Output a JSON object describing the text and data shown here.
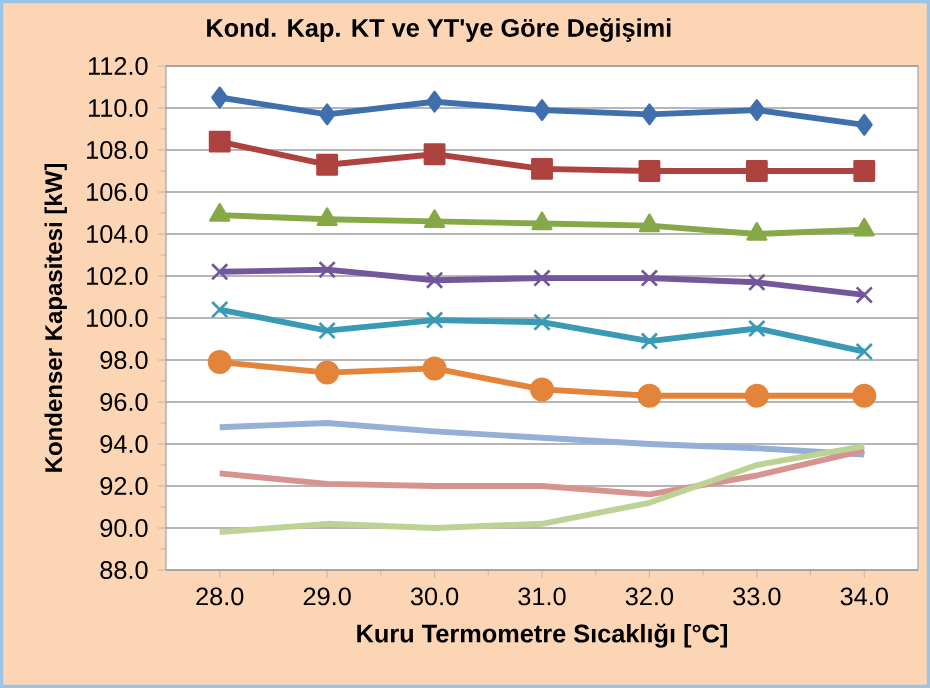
{
  "chart_data": {
    "type": "line",
    "title": "Kond. Kap. KT ve YT'ye Göre Değişimi",
    "xlabel": "Kuru Termometre Sıcaklığı  [°C]",
    "ylabel": "Kondenser Kapasitesi [kW]",
    "x": [
      28,
      29,
      30,
      31,
      32,
      33,
      34
    ],
    "xlim": [
      27.5,
      34.5
    ],
    "xticks": [
      {
        "value": 28,
        "label": "28.0"
      },
      {
        "value": 29,
        "label": "29.0"
      },
      {
        "value": 30,
        "label": "30.0"
      },
      {
        "value": 31,
        "label": "31.0"
      },
      {
        "value": 32,
        "label": "32.0"
      },
      {
        "value": 33,
        "label": "33.0"
      },
      {
        "value": 34,
        "label": "34.0"
      }
    ],
    "ylim": [
      88,
      112
    ],
    "yticks": [
      {
        "value": 88,
        "label": "88.0"
      },
      {
        "value": 90,
        "label": "90.0"
      },
      {
        "value": 92,
        "label": "92.0"
      },
      {
        "value": 94,
        "label": "94.0"
      },
      {
        "value": 96,
        "label": "96.0"
      },
      {
        "value": 98,
        "label": "98.0"
      },
      {
        "value": 100,
        "label": "100.0"
      },
      {
        "value": 102,
        "label": "102.0"
      },
      {
        "value": 104,
        "label": "104.0"
      },
      {
        "value": 106,
        "label": "106.0"
      },
      {
        "value": 108,
        "label": "108.0"
      },
      {
        "value": 110,
        "label": "110.0"
      },
      {
        "value": 112,
        "label": "112.0"
      }
    ],
    "grid": "y",
    "line_style": "solid",
    "series": [
      {
        "color": "#3f6fad",
        "marker": "diamond",
        "values": [
          110.5,
          109.7,
          110.3,
          109.9,
          109.7,
          109.9,
          109.2
        ]
      },
      {
        "color": "#ad423f",
        "marker": "square",
        "values": [
          108.4,
          107.3,
          107.8,
          107.1,
          107.0,
          107.0,
          107.0
        ]
      },
      {
        "color": "#86a846",
        "marker": "triangle",
        "values": [
          104.9,
          104.7,
          104.6,
          104.5,
          104.4,
          104.0,
          104.2
        ]
      },
      {
        "color": "#72579a",
        "marker": "cross",
        "values": [
          102.2,
          102.3,
          101.8,
          101.9,
          101.9,
          101.7,
          101.1
        ]
      },
      {
        "color": "#3a9ab5",
        "marker": "cross",
        "values": [
          100.4,
          99.4,
          99.9,
          99.8,
          98.9,
          99.5,
          98.4
        ]
      },
      {
        "color": "#e3843a",
        "marker": "circle",
        "values": [
          97.9,
          97.4,
          97.6,
          96.6,
          96.3,
          96.3,
          96.3
        ]
      },
      {
        "color": "#95b0d6",
        "marker": "none",
        "values": [
          94.8,
          95.0,
          94.6,
          94.3,
          94.0,
          93.8,
          93.5
        ]
      },
      {
        "color": "#d69390",
        "marker": "none",
        "values": [
          92.6,
          92.1,
          92.0,
          92.0,
          91.6,
          92.5,
          93.7
        ]
      },
      {
        "color": "#bdd396",
        "marker": "none",
        "values": [
          89.8,
          90.2,
          90.0,
          90.2,
          91.2,
          93.0,
          93.9
        ]
      }
    ]
  }
}
